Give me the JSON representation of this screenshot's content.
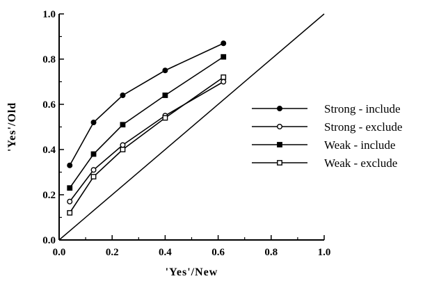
{
  "chart_data": {
    "type": "line",
    "title": "",
    "xlabel": "'Yes'/New",
    "ylabel": "'Yes'/Old",
    "xlim": [
      0.0,
      1.0
    ],
    "ylim": [
      0.0,
      1.0
    ],
    "x_ticks": [
      "0.0",
      "0.2",
      "0.4",
      "0.6",
      "0.8",
      "1.0"
    ],
    "y_ticks": [
      "0.0",
      "0.2",
      "0.4",
      "0.6",
      "0.8",
      "1.0"
    ],
    "grid": false,
    "legend_position": "right",
    "diagonal_reference": true,
    "x": [
      0.04,
      0.13,
      0.24,
      0.4,
      0.62
    ],
    "series": [
      {
        "name": "Strong - include",
        "marker": "filled-circle",
        "values": [
          0.33,
          0.52,
          0.64,
          0.75,
          0.87
        ]
      },
      {
        "name": "Strong - exclude",
        "marker": "open-circle",
        "values": [
          0.17,
          0.31,
          0.42,
          0.55,
          0.7
        ]
      },
      {
        "name": "Weak - include",
        "marker": "filled-square",
        "values": [
          0.23,
          0.38,
          0.51,
          0.64,
          0.81
        ]
      },
      {
        "name": "Weak - exclude",
        "marker": "open-square",
        "values": [
          0.12,
          0.28,
          0.4,
          0.54,
          0.72
        ]
      }
    ]
  }
}
